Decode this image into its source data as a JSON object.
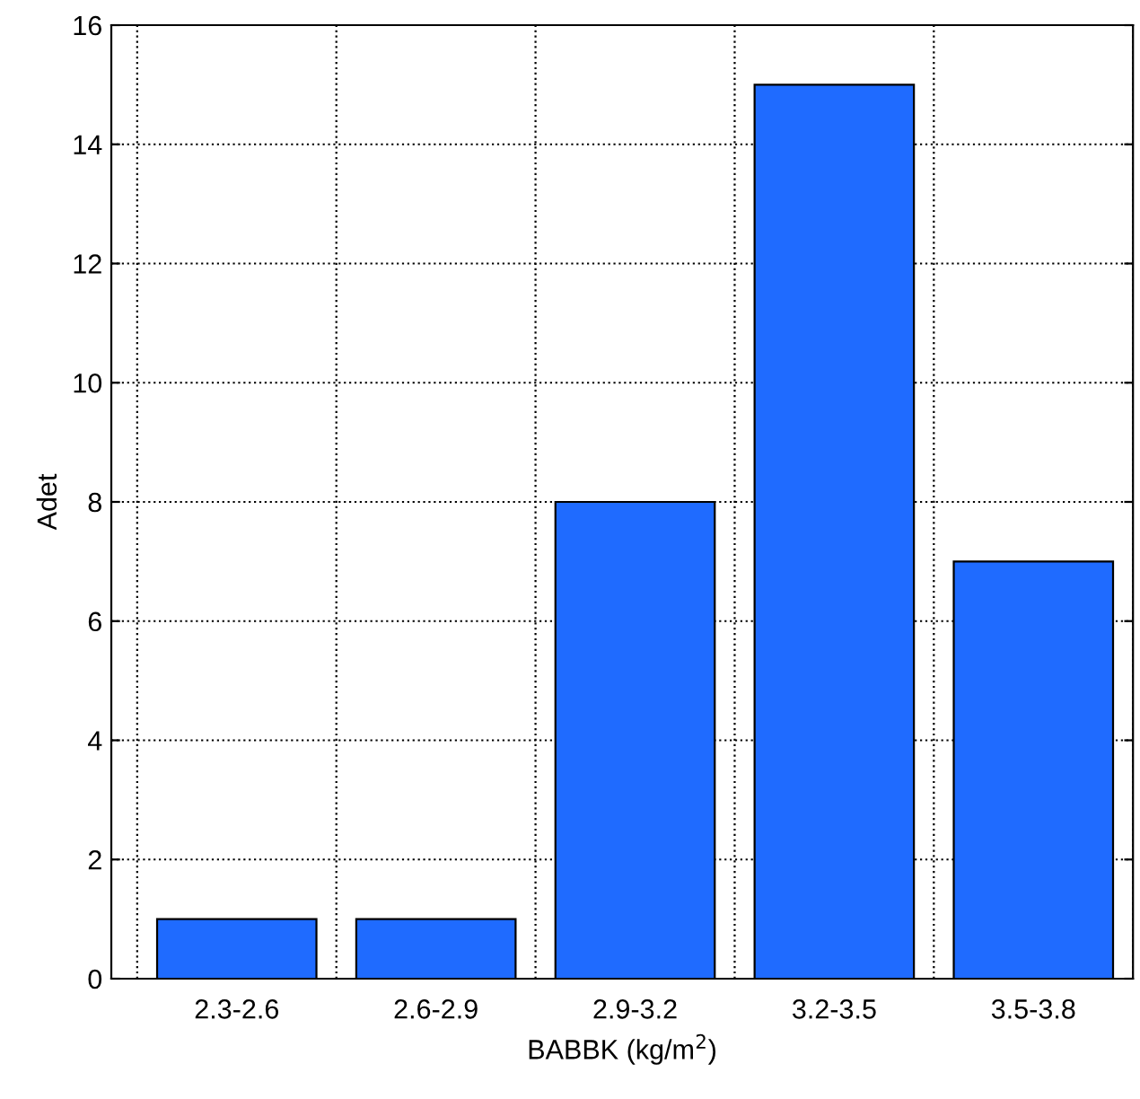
{
  "chart_data": {
    "type": "bar",
    "xlabel": "BABBK (kg/m$^{2}$)",
    "ylabel": "Adet",
    "categories": [
      "2.3-2.6",
      "2.6-2.9",
      "2.9-3.2",
      "3.2-3.5",
      "3.5-3.8"
    ],
    "values": [
      1,
      1,
      8,
      15,
      7
    ],
    "color": "#1f6bff",
    "ylim": [
      0,
      16
    ],
    "yticks": [
      0,
      2,
      4,
      6,
      8,
      10,
      12,
      14,
      16
    ],
    "grid": true
  }
}
